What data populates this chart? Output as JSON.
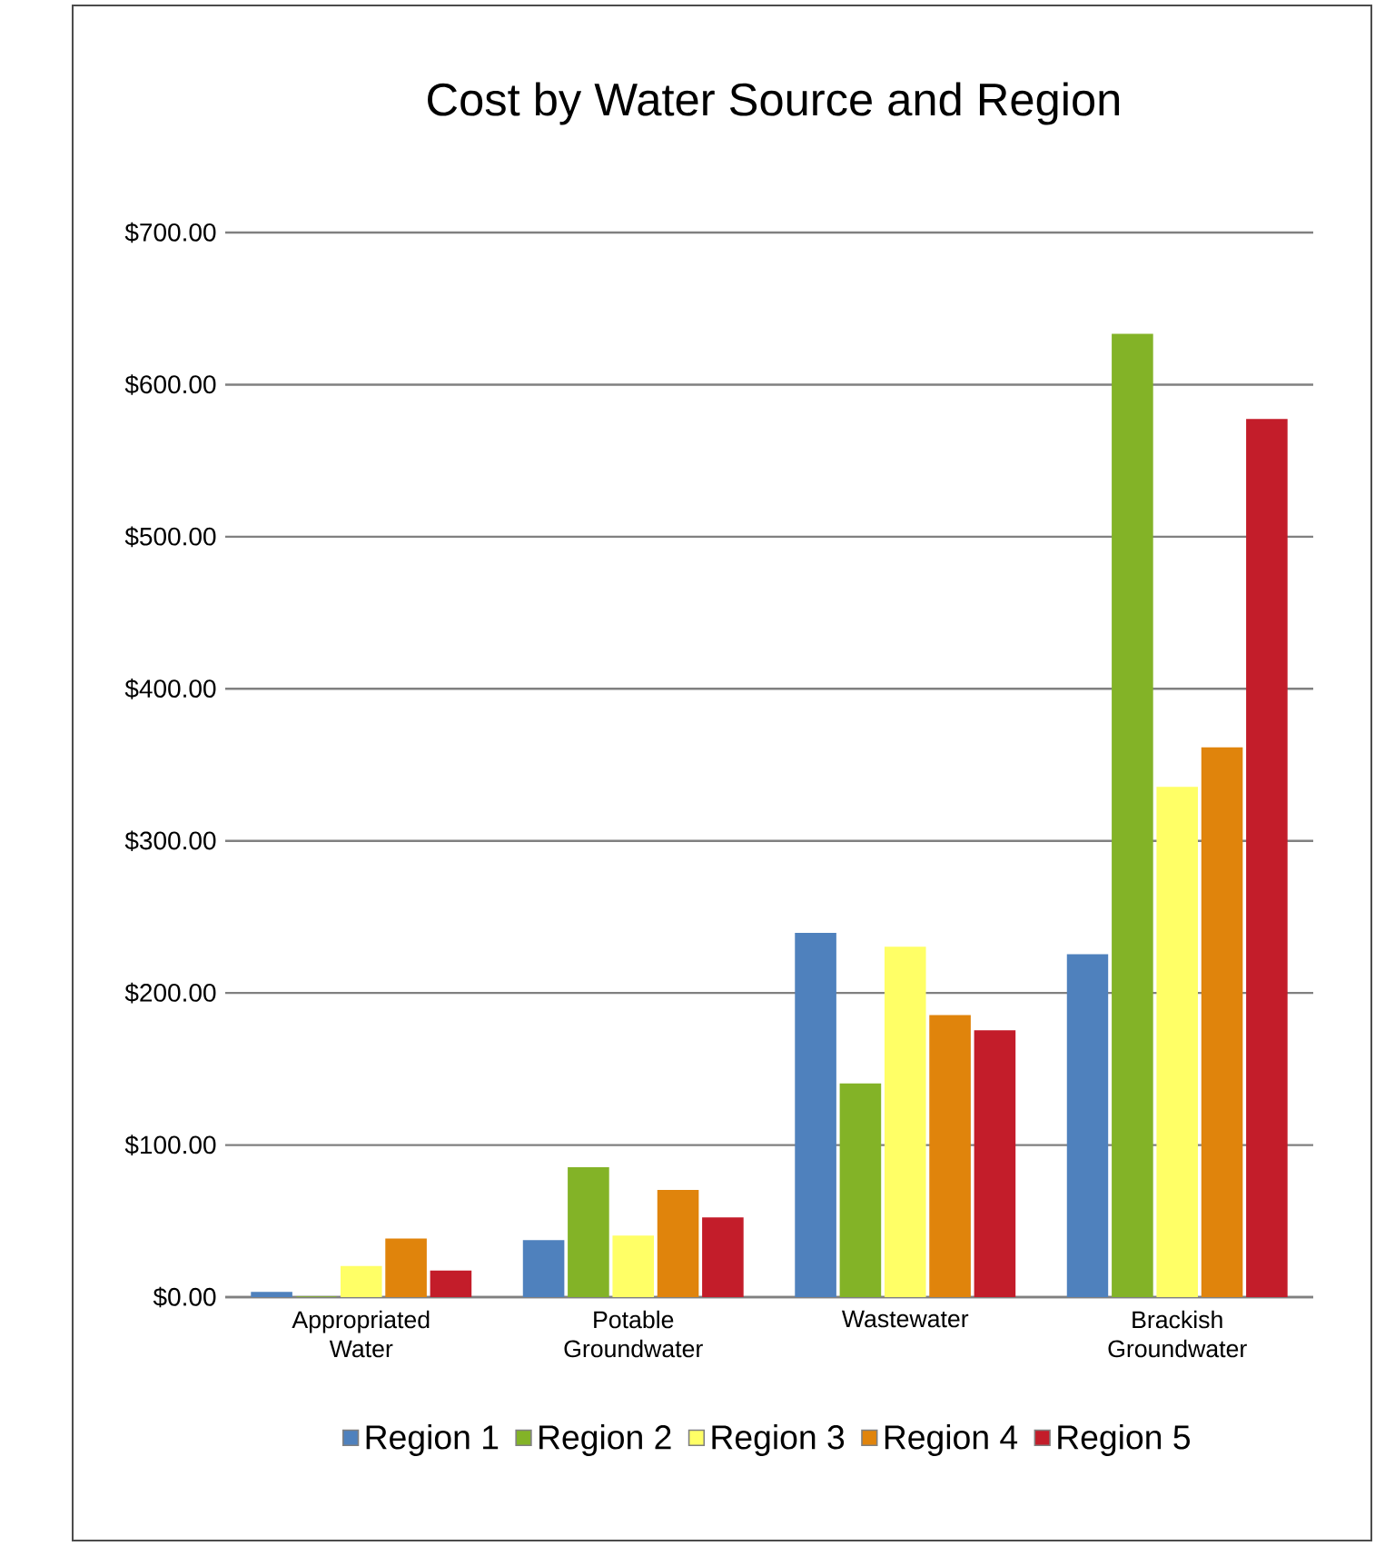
{
  "chart_data": {
    "type": "bar",
    "title": "Cost by Water Source and Region",
    "categories": [
      "Appropriated Water",
      "Potable Groundwater",
      "Wastewater",
      "Brackish Groundwater"
    ],
    "series": [
      {
        "name": "Region 1",
        "color": "#4f81bd",
        "values": [
          3,
          37,
          239,
          225
        ]
      },
      {
        "name": "Region 2",
        "color": "#83b327",
        "values": [
          0,
          85,
          140,
          633
        ]
      },
      {
        "name": "Region 3",
        "color": "#ffff66",
        "values": [
          20,
          40,
          230,
          335
        ]
      },
      {
        "name": "Region 4",
        "color": "#e0840c",
        "values": [
          38,
          70,
          185,
          361
        ]
      },
      {
        "name": "Region 5",
        "color": "#c31d2a",
        "values": [
          17,
          52,
          175,
          577
        ]
      }
    ],
    "ylim": [
      0,
      700
    ],
    "yticks": [
      {
        "value": 0,
        "label": "$0.00"
      },
      {
        "value": 100,
        "label": "$100.00"
      },
      {
        "value": 200,
        "label": "$200.00"
      },
      {
        "value": 300,
        "label": "$300.00"
      },
      {
        "value": 400,
        "label": "$400.00"
      },
      {
        "value": 500,
        "label": "$500.00"
      },
      {
        "value": 600,
        "label": "$600.00"
      },
      {
        "value": 700,
        "label": "$700.00"
      }
    ],
    "grid": "y",
    "legend": "bottom"
  }
}
